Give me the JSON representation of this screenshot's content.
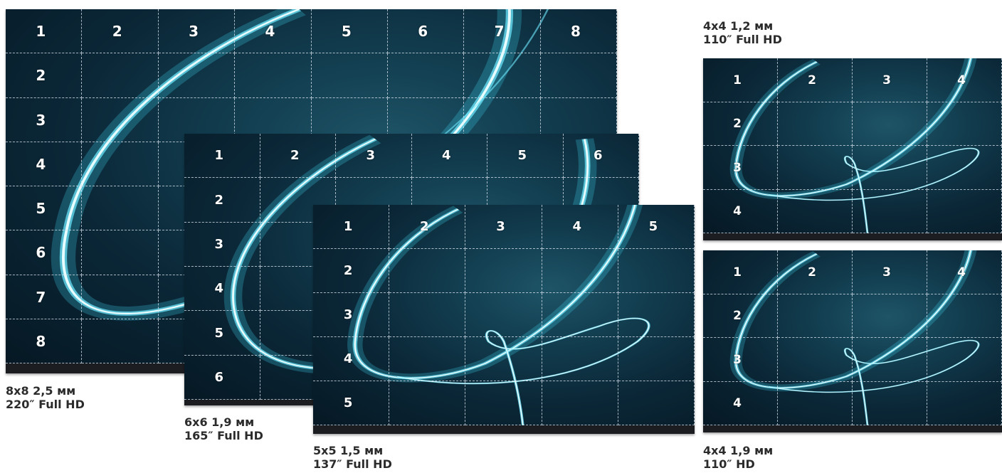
{
  "walls": [
    {
      "id": "wall-8x8",
      "grid": 8,
      "top_numbers": [
        "1",
        "2",
        "3",
        "4",
        "5",
        "6",
        "7",
        "8"
      ],
      "side_numbers": [
        "2",
        "3",
        "4",
        "5",
        "6",
        "7",
        "8"
      ],
      "caption_line1": "8x8 2,5 мм",
      "caption_line2": "220″ Full HD"
    },
    {
      "id": "wall-6x6",
      "grid": 6,
      "top_numbers": [
        "1",
        "2",
        "3",
        "4",
        "5",
        "6"
      ],
      "side_numbers": [
        "2",
        "3",
        "4",
        "5",
        "6"
      ],
      "caption_line1": "6x6 1,9 мм",
      "caption_line2": "165″ Full HD"
    },
    {
      "id": "wall-5x5",
      "grid": 5,
      "top_numbers": [
        "1",
        "2",
        "3",
        "4",
        "5"
      ],
      "side_numbers": [
        "2",
        "3",
        "4",
        "5"
      ],
      "caption_line1": "5x5 1,5 мм",
      "caption_line2": "137″ Full HD"
    },
    {
      "id": "wall-4x4-a",
      "grid": 4,
      "top_numbers": [
        "1",
        "2",
        "3",
        "4"
      ],
      "side_numbers": [
        "2",
        "3",
        "4"
      ],
      "caption_line1": "4x4 1,2 мм",
      "caption_line2": "110″ Full HD"
    },
    {
      "id": "wall-4x4-b",
      "grid": 4,
      "top_numbers": [
        "1",
        "2",
        "3",
        "4"
      ],
      "side_numbers": [
        "2",
        "3",
        "4"
      ],
      "caption_line1": "4x4 1,9 мм",
      "caption_line2": "110″ HD"
    }
  ],
  "colors": {
    "glow": "#4fe0ff",
    "glow_core": "#e8fdff",
    "grid_line": "#dce6f0",
    "caption": "#2b2b2b"
  }
}
